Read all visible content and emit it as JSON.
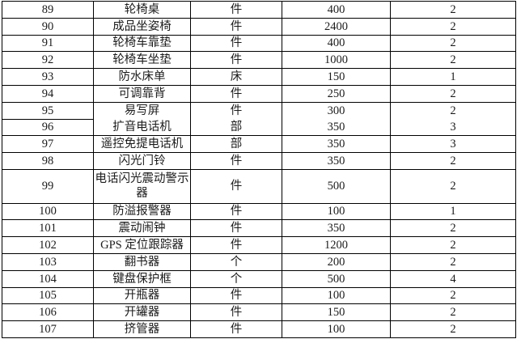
{
  "colors": {
    "background": "#ffffff",
    "border": "#000000",
    "text": "#1c1c1c"
  },
  "table": {
    "rows": [
      {
        "no": "89",
        "name": "轮椅桌",
        "unit": "件",
        "price": "400",
        "qty": "2"
      },
      {
        "no": "90",
        "name": "成品坐姿椅",
        "unit": "件",
        "price": "2400",
        "qty": "2"
      },
      {
        "no": "91",
        "name": "轮椅车靠垫",
        "unit": "件",
        "price": "400",
        "qty": "2"
      },
      {
        "no": "92",
        "name": "轮椅车坐垫",
        "unit": "件",
        "price": "1000",
        "qty": "2"
      },
      {
        "no": "93",
        "name": "防水床单",
        "unit": "床",
        "price": "150",
        "qty": "1"
      },
      {
        "no": "94",
        "name": "可调靠背",
        "unit": "件",
        "price": "250",
        "qty": "2"
      },
      {
        "no": "95",
        "name": "易写屏",
        "unit": "件",
        "price": "300",
        "qty": "2"
      },
      {
        "no": "96",
        "name": "扩音电话机",
        "unit": "部",
        "price": "350",
        "qty": "3"
      },
      {
        "no": "97",
        "name": "遥控免提电话机",
        "unit": "部",
        "price": "350",
        "qty": "3"
      },
      {
        "no": "98",
        "name": "闪光门铃",
        "unit": "件",
        "price": "350",
        "qty": "2"
      },
      {
        "no": "99",
        "name": "电话闪光震动警示器",
        "unit": "件",
        "price": "500",
        "qty": "2"
      },
      {
        "no": "100",
        "name": "防溢报警器",
        "unit": "件",
        "price": "100",
        "qty": "1"
      },
      {
        "no": "101",
        "name": "震动闹钟",
        "unit": "件",
        "price": "350",
        "qty": "2"
      },
      {
        "no": "102",
        "name": "GPS 定位跟踪器",
        "unit": "件",
        "price": "1200",
        "qty": "2"
      },
      {
        "no": "103",
        "name": "翻书器",
        "unit": "个",
        "price": "200",
        "qty": "2"
      },
      {
        "no": "104",
        "name": "键盘保护框",
        "unit": "个",
        "price": "500",
        "qty": "4"
      },
      {
        "no": "105",
        "name": "开瓶器",
        "unit": "件",
        "price": "100",
        "qty": "2"
      },
      {
        "no": "106",
        "name": "开罐器",
        "unit": "件",
        "price": "150",
        "qty": "2"
      },
      {
        "no": "107",
        "name": "挤管器",
        "unit": "件",
        "price": "100",
        "qty": "2"
      }
    ]
  }
}
